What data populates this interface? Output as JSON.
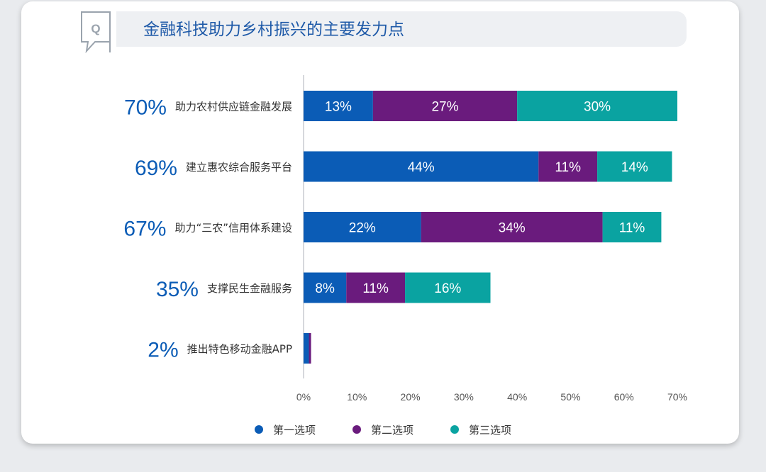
{
  "title": "金融科技助力乡村振兴的主要发力点",
  "colors": {
    "first": "#0b5cb6",
    "second": "#6a1b7d",
    "third": "#0aa3a1",
    "total": "#0b5cb6"
  },
  "legend": [
    {
      "label": "第一选项",
      "color": "#0b5cb6"
    },
    {
      "label": "第二选项",
      "color": "#6a1b7d"
    },
    {
      "label": "第三选项",
      "color": "#0aa3a1"
    }
  ],
  "chart_data": {
    "type": "bar",
    "orientation": "horizontal",
    "stacked": true,
    "categories": [
      "助力农村供应链金融发展",
      "建立惠农综合服务平台",
      "助力“三农”信用体系建设",
      "支撑民生金融服务",
      "推出特色移动金融APP"
    ],
    "totals": [
      "70%",
      "69%",
      "67%",
      "35%",
      "2%"
    ],
    "series": [
      {
        "name": "第一选项",
        "values": [
          13,
          44,
          22,
          8,
          1
        ],
        "labels": [
          "13%",
          "44%",
          "22%",
          "8%",
          ""
        ]
      },
      {
        "name": "第二选项",
        "values": [
          27,
          11,
          34,
          11,
          0.4
        ],
        "labels": [
          "27%",
          "11%",
          "34%",
          "11%",
          ""
        ]
      },
      {
        "name": "第三选项",
        "values": [
          30,
          14,
          11,
          16,
          0
        ],
        "labels": [
          "30%",
          "14%",
          "11%",
          "16%",
          ""
        ]
      }
    ],
    "xlim": [
      0,
      70
    ],
    "xticks": [
      "0%",
      "10%",
      "20%",
      "30%",
      "40%",
      "50%",
      "60%",
      "70%"
    ],
    "grid": false,
    "legend_position": "bottom"
  }
}
